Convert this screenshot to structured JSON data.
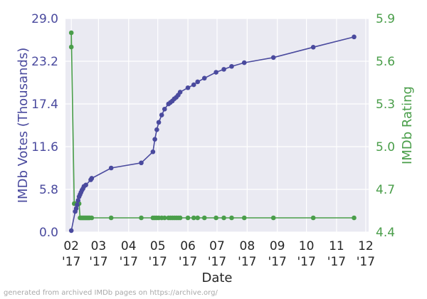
{
  "chart_data": {
    "type": "line",
    "xlabel": "Date",
    "ylabel_left": "IMDb Votes (Thousands)",
    "ylabel_right": "IMDb Rating",
    "yticks_left": [
      "0.0",
      "5.8",
      "11.6",
      "17.4",
      "23.2",
      "29.0"
    ],
    "yticks_right": [
      "4.4",
      "4.7",
      "5.0",
      "5.3",
      "5.6",
      "5.9"
    ],
    "xticks": [
      {
        "month": "02",
        "year": "'17"
      },
      {
        "month": "03",
        "year": "'17"
      },
      {
        "month": "04",
        "year": "'17"
      },
      {
        "month": "05",
        "year": "'17"
      },
      {
        "month": "06",
        "year": "'17"
      },
      {
        "month": "07",
        "year": "'17"
      },
      {
        "month": "08",
        "year": "'17"
      },
      {
        "month": "09",
        "year": "'17"
      },
      {
        "month": "10",
        "year": "'17"
      },
      {
        "month": "11",
        "year": "'17"
      },
      {
        "month": "12",
        "year": "'17"
      }
    ],
    "ylim_left": [
      0,
      29
    ],
    "ylim_right": [
      4.4,
      5.9
    ],
    "xlim": [
      "2017-01-26",
      "2017-12-04"
    ],
    "grid": true,
    "colors": {
      "votes": "#4a4a9e",
      "rating": "#4a9e4a",
      "background": "#eaeaf2",
      "grid": "#ffffff"
    },
    "series": [
      {
        "axis": "left",
        "x": [
          "2017-02-01",
          "2017-02-05",
          "2017-02-06",
          "2017-02-07",
          "2017-02-08",
          "2017-02-09",
          "2017-02-10",
          "2017-02-11",
          "2017-02-12",
          "2017-02-13",
          "2017-02-14",
          "2017-02-16",
          "2017-02-21",
          "2017-02-22",
          "2017-03-14",
          "2017-04-14",
          "2017-04-26",
          "2017-04-28",
          "2017-04-30",
          "2017-05-02",
          "2017-05-05",
          "2017-05-08",
          "2017-05-12",
          "2017-05-14",
          "2017-05-16",
          "2017-05-18",
          "2017-05-20",
          "2017-05-22",
          "2017-05-24",
          "2017-06-01",
          "2017-06-07",
          "2017-06-11",
          "2017-06-18",
          "2017-06-30",
          "2017-07-08",
          "2017-07-16",
          "2017-07-29",
          "2017-08-28",
          "2017-10-08",
          "2017-11-19"
        ],
        "values": [
          0.2,
          2.8,
          3.2,
          3.7,
          4.3,
          4.8,
          5.1,
          5.4,
          5.7,
          5.9,
          6.2,
          6.4,
          7.1,
          7.3,
          8.7,
          9.4,
          10.9,
          12.6,
          13.9,
          14.9,
          15.9,
          16.7,
          17.4,
          17.6,
          17.8,
          18.1,
          18.3,
          18.6,
          19.0,
          19.6,
          20.0,
          20.4,
          20.9,
          21.7,
          22.1,
          22.5,
          23.0,
          23.7,
          25.1,
          26.5
        ]
      },
      {
        "axis": "right",
        "x": [
          "2017-02-01",
          "2017-02-01",
          "2017-02-04",
          "2017-02-05",
          "2017-02-06",
          "2017-02-07",
          "2017-02-08",
          "2017-02-09",
          "2017-02-10",
          "2017-02-11",
          "2017-02-12",
          "2017-02-13",
          "2017-02-14",
          "2017-02-15",
          "2017-02-16",
          "2017-02-17",
          "2017-02-18",
          "2017-02-19",
          "2017-02-20",
          "2017-02-22",
          "2017-03-14",
          "2017-04-14",
          "2017-04-26",
          "2017-04-28",
          "2017-04-30",
          "2017-05-02",
          "2017-05-05",
          "2017-05-08",
          "2017-05-12",
          "2017-05-14",
          "2017-05-16",
          "2017-05-18",
          "2017-05-20",
          "2017-05-22",
          "2017-05-24",
          "2017-06-01",
          "2017-06-07",
          "2017-06-11",
          "2017-06-18",
          "2017-06-30",
          "2017-07-08",
          "2017-07-16",
          "2017-07-29",
          "2017-08-28",
          "2017-10-08",
          "2017-11-19"
        ],
        "values": [
          5.7,
          5.8,
          4.6,
          4.6,
          4.6,
          4.6,
          4.6,
          4.6,
          4.5,
          4.5,
          4.5,
          4.5,
          4.5,
          4.5,
          4.5,
          4.5,
          4.5,
          4.5,
          4.5,
          4.5,
          4.5,
          4.5,
          4.5,
          4.5,
          4.5,
          4.5,
          4.5,
          4.5,
          4.5,
          4.5,
          4.5,
          4.5,
          4.5,
          4.5,
          4.5,
          4.5,
          4.5,
          4.5,
          4.5,
          4.5,
          4.5,
          4.5,
          4.5,
          4.5,
          4.5,
          4.5
        ]
      }
    ]
  },
  "footer_text": "generated from archived IMDb pages on https://archive.org/"
}
